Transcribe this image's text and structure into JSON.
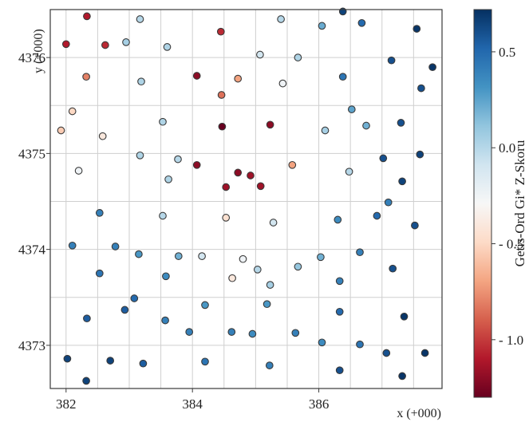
{
  "chart_data": {
    "type": "scatter",
    "title": "",
    "xlabel": "x (+000)",
    "ylabel": "y (+000)",
    "xlim": [
      381.75,
      387.95
    ],
    "ylim": [
      4372.55,
      4376.5
    ],
    "xticks": [
      382,
      384,
      386
    ],
    "yticks": [
      4373,
      4374,
      4375,
      4376
    ],
    "grid": true,
    "colorbar": {
      "label": "Getis-Ord Gi* Z-Skoru",
      "range": [
        -1.3,
        0.72
      ],
      "ticks": [
        {
          "value": 0.5,
          "label": "0.5"
        },
        {
          "value": 0.0,
          "label": "0.0"
        },
        {
          "value": -0.5,
          "label": "- 0.5"
        },
        {
          "value": -1.0,
          "label": "- 1.0"
        }
      ],
      "colors": [
        "#67001f",
        "#b2182b",
        "#d6604d",
        "#f4a582",
        "#fddbc7",
        "#f7f7f7",
        "#d1e5f0",
        "#92c5de",
        "#4393c3",
        "#2166ac",
        "#053061"
      ]
    },
    "points": [
      {
        "x": 382.33,
        "y": 4376.43,
        "z": -1.1
      },
      {
        "x": 382.0,
        "y": 4376.14,
        "z": -1.1
      },
      {
        "x": 382.62,
        "y": 4376.13,
        "z": -1.05
      },
      {
        "x": 382.95,
        "y": 4376.16,
        "z": 0.05
      },
      {
        "x": 383.17,
        "y": 4376.4,
        "z": 0.0
      },
      {
        "x": 383.6,
        "y": 4376.11,
        "z": 0.02
      },
      {
        "x": 384.45,
        "y": 4376.27,
        "z": -1.05
      },
      {
        "x": 385.4,
        "y": 4376.4,
        "z": 0.0
      },
      {
        "x": 386.05,
        "y": 4376.33,
        "z": 0.22
      },
      {
        "x": 386.38,
        "y": 4376.48,
        "z": 0.65
      },
      {
        "x": 386.68,
        "y": 4376.36,
        "z": 0.5
      },
      {
        "x": 387.55,
        "y": 4376.3,
        "z": 0.7
      },
      {
        "x": 385.07,
        "y": 4376.03,
        "z": -0.1
      },
      {
        "x": 385.67,
        "y": 4376.0,
        "z": 0.02
      },
      {
        "x": 387.15,
        "y": 4375.97,
        "z": 0.6
      },
      {
        "x": 387.8,
        "y": 4375.9,
        "z": 0.7
      },
      {
        "x": 382.32,
        "y": 4375.8,
        "z": -0.8
      },
      {
        "x": 383.19,
        "y": 4375.75,
        "z": 0.02
      },
      {
        "x": 384.07,
        "y": 4375.81,
        "z": -1.2
      },
      {
        "x": 384.72,
        "y": 4375.78,
        "z": -0.7
      },
      {
        "x": 385.43,
        "y": 4375.73,
        "z": -0.25
      },
      {
        "x": 386.38,
        "y": 4375.8,
        "z": 0.45
      },
      {
        "x": 387.62,
        "y": 4375.68,
        "z": 0.6
      },
      {
        "x": 384.46,
        "y": 4375.61,
        "z": -0.85
      },
      {
        "x": 382.1,
        "y": 4375.44,
        "z": -0.5
      },
      {
        "x": 386.52,
        "y": 4375.46,
        "z": 0.25
      },
      {
        "x": 381.92,
        "y": 4375.24,
        "z": -0.55
      },
      {
        "x": 382.58,
        "y": 4375.18,
        "z": -0.4
      },
      {
        "x": 383.53,
        "y": 4375.33,
        "z": 0.02
      },
      {
        "x": 384.47,
        "y": 4375.28,
        "z": -1.3
      },
      {
        "x": 385.23,
        "y": 4375.3,
        "z": -1.2
      },
      {
        "x": 386.1,
        "y": 4375.24,
        "z": 0.05
      },
      {
        "x": 386.75,
        "y": 4375.29,
        "z": 0.2
      },
      {
        "x": 387.3,
        "y": 4375.32,
        "z": 0.6
      },
      {
        "x": 383.17,
        "y": 4374.98,
        "z": 0.02
      },
      {
        "x": 383.77,
        "y": 4374.94,
        "z": 0.0
      },
      {
        "x": 384.07,
        "y": 4374.88,
        "z": -1.2
      },
      {
        "x": 385.58,
        "y": 4374.88,
        "z": -0.7
      },
      {
        "x": 387.02,
        "y": 4374.95,
        "z": 0.6
      },
      {
        "x": 387.6,
        "y": 4374.99,
        "z": 0.65
      },
      {
        "x": 382.2,
        "y": 4374.82,
        "z": -0.25
      },
      {
        "x": 383.62,
        "y": 4374.73,
        "z": 0.02
      },
      {
        "x": 384.72,
        "y": 4374.8,
        "z": -1.2
      },
      {
        "x": 384.92,
        "y": 4374.77,
        "z": -1.15
      },
      {
        "x": 386.48,
        "y": 4374.81,
        "z": 0.0
      },
      {
        "x": 387.32,
        "y": 4374.71,
        "z": 0.65
      },
      {
        "x": 384.53,
        "y": 4374.65,
        "z": -1.15
      },
      {
        "x": 385.08,
        "y": 4374.66,
        "z": -1.15
      },
      {
        "x": 387.1,
        "y": 4374.49,
        "z": 0.4
      },
      {
        "x": 382.53,
        "y": 4374.38,
        "z": 0.4
      },
      {
        "x": 383.53,
        "y": 4374.35,
        "z": 0.0
      },
      {
        "x": 384.53,
        "y": 4374.33,
        "z": -0.45
      },
      {
        "x": 385.28,
        "y": 4374.28,
        "z": -0.1
      },
      {
        "x": 386.3,
        "y": 4374.31,
        "z": 0.35
      },
      {
        "x": 386.92,
        "y": 4374.35,
        "z": 0.5
      },
      {
        "x": 387.52,
        "y": 4374.25,
        "z": 0.6
      },
      {
        "x": 382.1,
        "y": 4374.04,
        "z": 0.4
      },
      {
        "x": 382.78,
        "y": 4374.03,
        "z": 0.4
      },
      {
        "x": 383.15,
        "y": 4373.95,
        "z": 0.3
      },
      {
        "x": 383.78,
        "y": 4373.93,
        "z": 0.2
      },
      {
        "x": 384.15,
        "y": 4373.93,
        "z": -0.1
      },
      {
        "x": 384.8,
        "y": 4373.9,
        "z": -0.25
      },
      {
        "x": 385.03,
        "y": 4373.79,
        "z": 0.0
      },
      {
        "x": 385.67,
        "y": 4373.82,
        "z": 0.1
      },
      {
        "x": 386.03,
        "y": 4373.92,
        "z": 0.2
      },
      {
        "x": 386.65,
        "y": 4373.97,
        "z": 0.4
      },
      {
        "x": 387.17,
        "y": 4373.8,
        "z": 0.6
      },
      {
        "x": 382.53,
        "y": 4373.75,
        "z": 0.45
      },
      {
        "x": 383.58,
        "y": 4373.72,
        "z": 0.35
      },
      {
        "x": 384.63,
        "y": 4373.7,
        "z": -0.4
      },
      {
        "x": 385.23,
        "y": 4373.63,
        "z": 0.05
      },
      {
        "x": 386.33,
        "y": 4373.67,
        "z": 0.4
      },
      {
        "x": 383.08,
        "y": 4373.49,
        "z": 0.5
      },
      {
        "x": 382.93,
        "y": 4373.37,
        "z": 0.55
      },
      {
        "x": 384.2,
        "y": 4373.42,
        "z": 0.3
      },
      {
        "x": 385.18,
        "y": 4373.43,
        "z": 0.3
      },
      {
        "x": 386.33,
        "y": 4373.35,
        "z": 0.5
      },
      {
        "x": 382.33,
        "y": 4373.28,
        "z": 0.55
      },
      {
        "x": 383.57,
        "y": 4373.26,
        "z": 0.4
      },
      {
        "x": 387.35,
        "y": 4373.3,
        "z": 0.7
      },
      {
        "x": 383.95,
        "y": 4373.14,
        "z": 0.4
      },
      {
        "x": 384.62,
        "y": 4373.14,
        "z": 0.4
      },
      {
        "x": 384.95,
        "y": 4373.12,
        "z": 0.35
      },
      {
        "x": 385.63,
        "y": 4373.13,
        "z": 0.4
      },
      {
        "x": 386.05,
        "y": 4373.03,
        "z": 0.35
      },
      {
        "x": 386.65,
        "y": 4373.01,
        "z": 0.45
      },
      {
        "x": 387.07,
        "y": 4372.92,
        "z": 0.6
      },
      {
        "x": 387.68,
        "y": 4372.92,
        "z": 0.7
      },
      {
        "x": 382.02,
        "y": 4372.86,
        "z": 0.65
      },
      {
        "x": 382.7,
        "y": 4372.84,
        "z": 0.65
      },
      {
        "x": 383.22,
        "y": 4372.81,
        "z": 0.55
      },
      {
        "x": 384.2,
        "y": 4372.83,
        "z": 0.45
      },
      {
        "x": 385.22,
        "y": 4372.79,
        "z": 0.4
      },
      {
        "x": 386.33,
        "y": 4372.74,
        "z": 0.6
      },
      {
        "x": 387.32,
        "y": 4372.68,
        "z": 0.7
      },
      {
        "x": 382.32,
        "y": 4372.63,
        "z": 0.65
      }
    ]
  }
}
